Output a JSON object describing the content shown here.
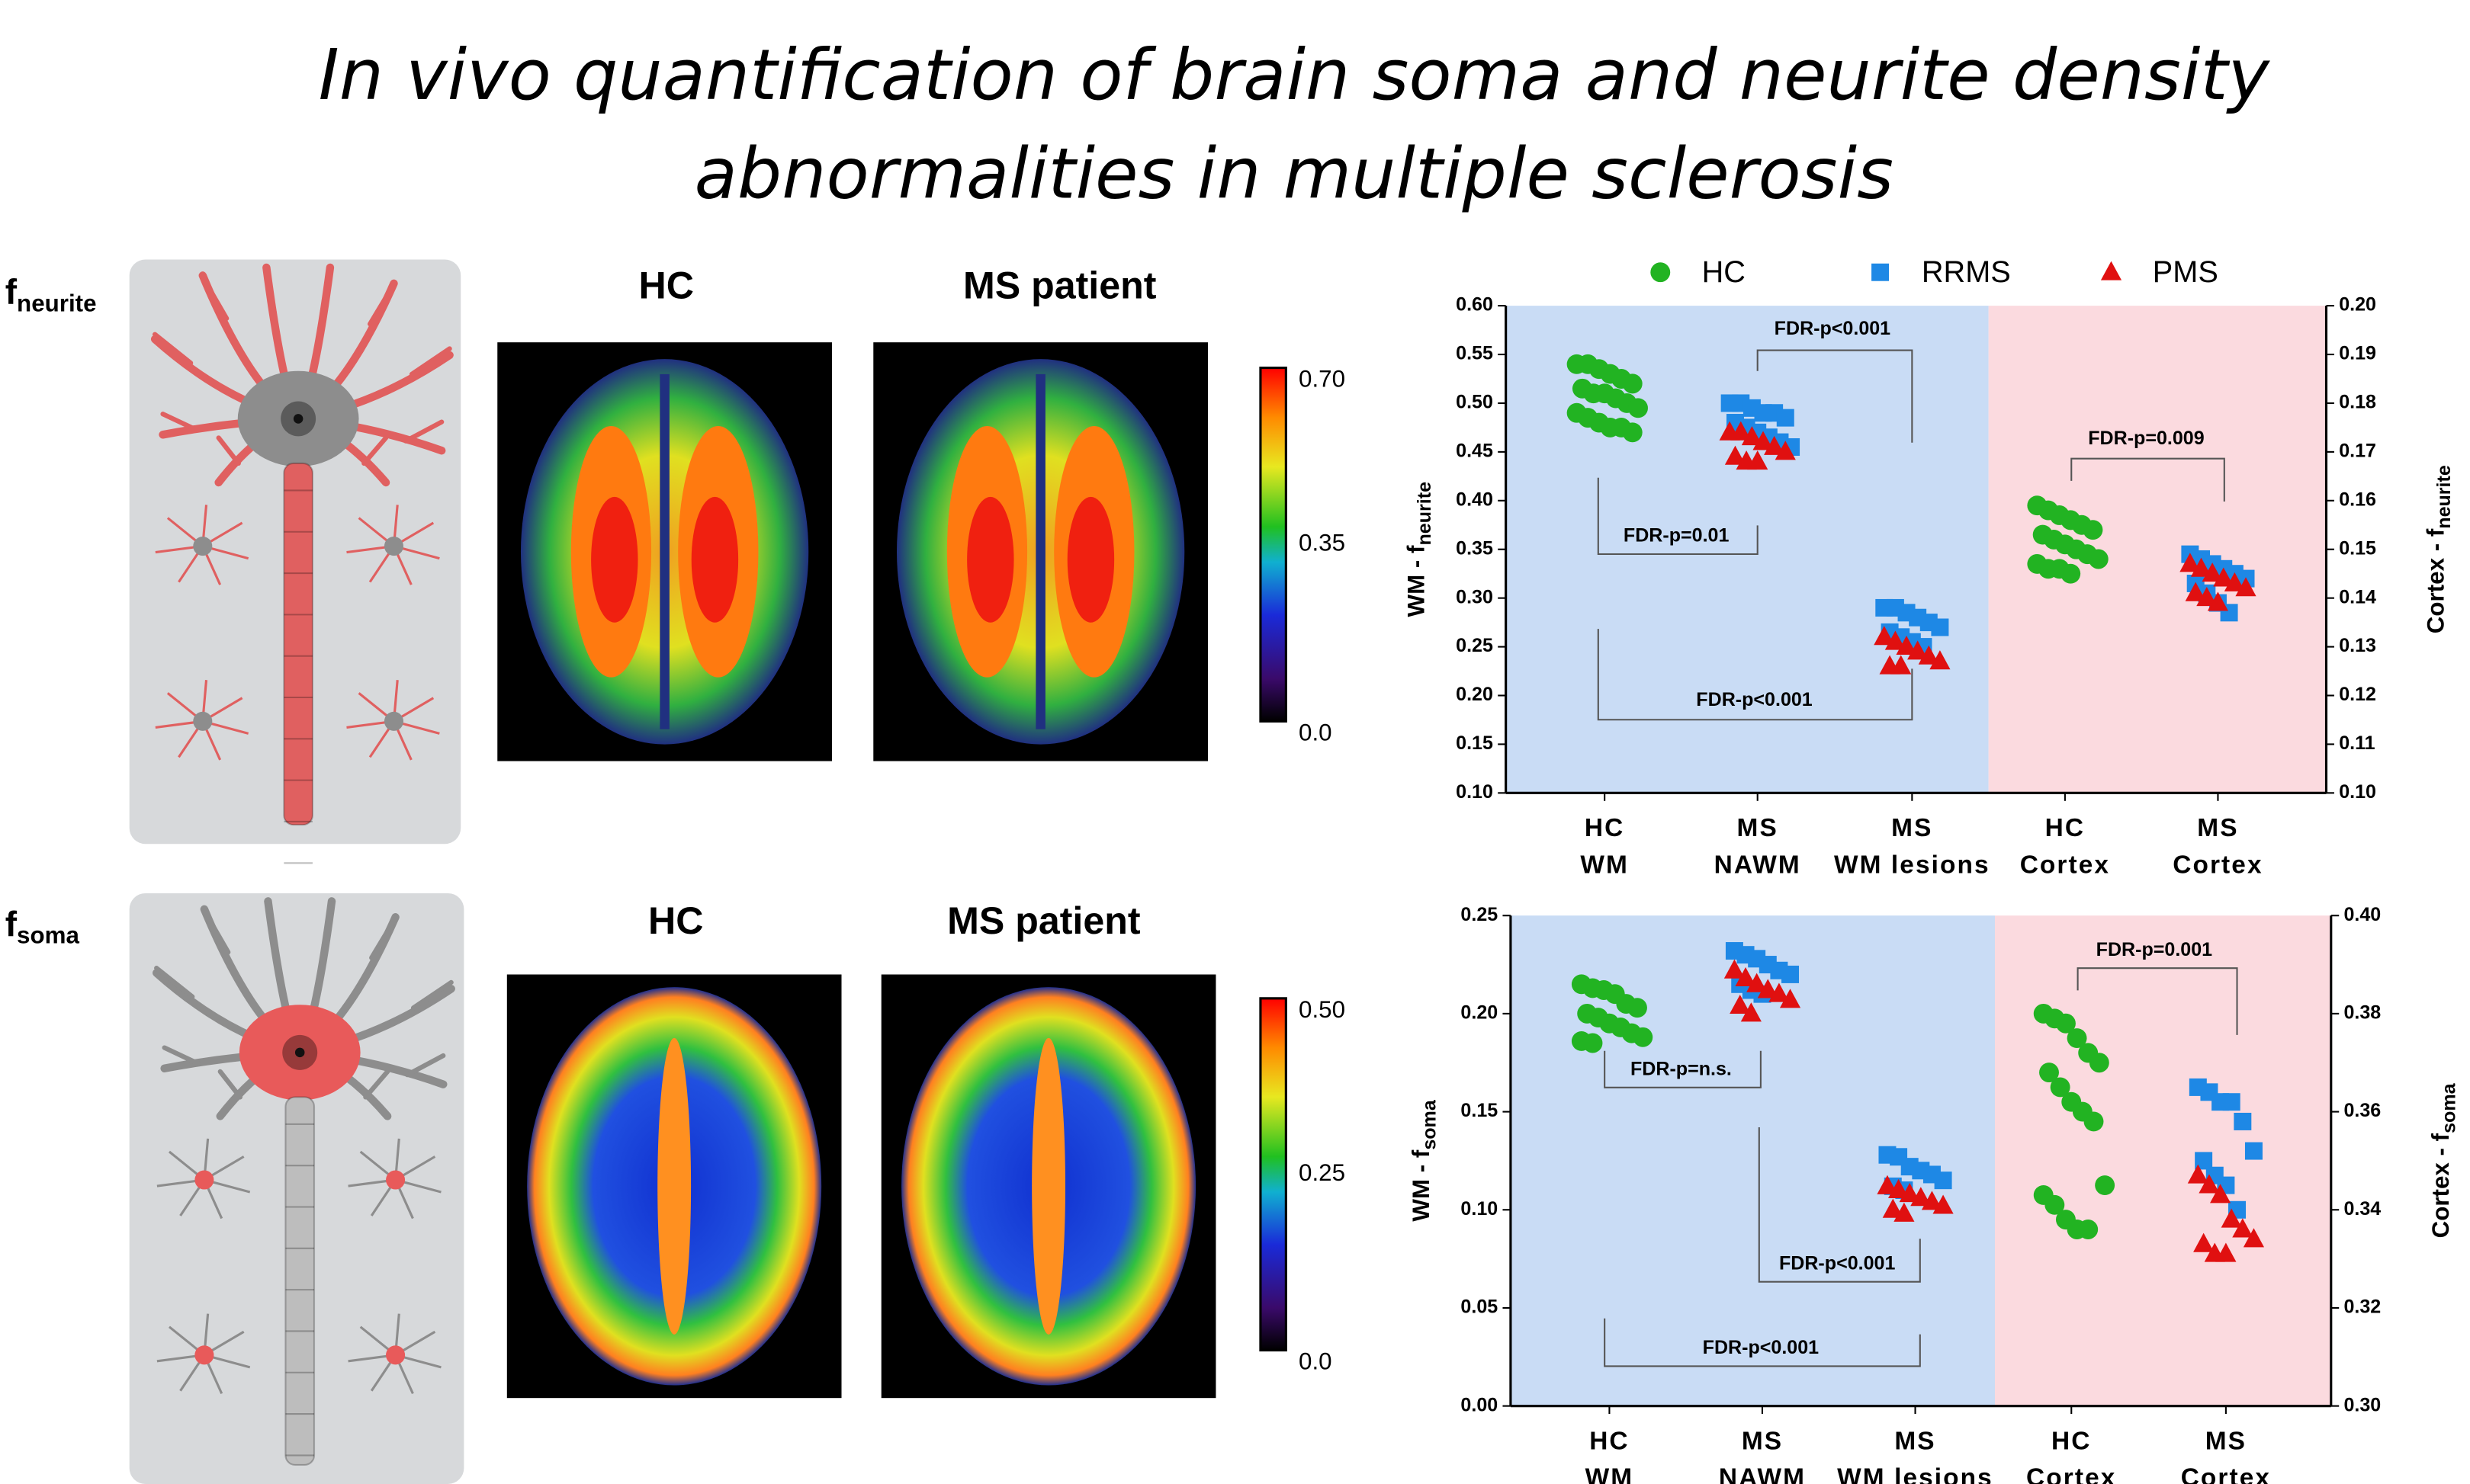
{
  "title": [
    "In vivo quantification of brain soma and neurite density",
    "abnormalities in multiple sclerosis"
  ],
  "panels": [
    {
      "label": "f",
      "label_sub": "neurite",
      "map_titles": [
        "HC",
        "MS patient"
      ],
      "colorbar_ticks": [
        {
          "value": 0,
          "label": "0.0"
        },
        0.35,
        {
          "value": 0.7,
          "label": "0.70"
        }
      ]
    },
    {
      "label": "f",
      "label_sub": "soma",
      "map_titles": [
        "HC",
        "MS patient"
      ],
      "colorbar_ticks": [
        {
          "value": 0,
          "label": "0.0"
        },
        0.25,
        {
          "value": 0.5,
          "label": "0.50"
        }
      ]
    }
  ],
  "chart_data": [
    {
      "type": "scatter",
      "legend": "top",
      "ylabel": "WM - f",
      "ylabel_sub": "neurite",
      "y2label": "Cortex - f",
      "y2label_sub": "neurite",
      "categories": [
        [
          "HC",
          "WM"
        ],
        [
          "MS",
          "NAWM"
        ],
        [
          "MS",
          "WM lesions"
        ],
        [
          "HC",
          "Cortex"
        ],
        [
          "MS",
          "Cortex"
        ]
      ],
      "category_axis": [
        "y",
        "y",
        "y",
        "y2",
        "y2"
      ],
      "ylim": [
        0.1,
        0.6
      ],
      "yticks": [
        {
          "value": 0.1,
          "label": "0.10"
        },
        0.15,
        {
          "value": 0.2,
          "label": "0.20"
        },
        0.25,
        {
          "value": 0.3,
          "label": "0.30"
        },
        0.35,
        {
          "value": 0.4,
          "label": "0.40"
        },
        0.45,
        {
          "value": 0.5,
          "label": "0.50"
        },
        0.55,
        {
          "value": 0.6,
          "label": "0.60"
        }
      ],
      "y2lim": [
        0.1,
        0.2
      ],
      "y2ticks": [
        {
          "value": 0.1,
          "label": "0.10"
        },
        0.11,
        0.12,
        0.13,
        0.14,
        0.15,
        0.16,
        0.17,
        0.18,
        0.19,
        {
          "value": 0.2,
          "label": "0.20"
        }
      ],
      "series": [
        {
          "name": "HC",
          "color": "#22b322",
          "marker": "circle",
          "values": [
            [
              0.54,
              0.54,
              0.535,
              0.53,
              0.525,
              0.52,
              0.515,
              0.51,
              0.51,
              0.505,
              0.5,
              0.495,
              0.49,
              0.485,
              0.48,
              0.475,
              0.475,
              0.47
            ],
            null,
            null,
            [
              0.159,
              0.158,
              0.157,
              0.156,
              0.155,
              0.154,
              0.153,
              0.152,
              0.151,
              0.15,
              0.149,
              0.148,
              0.147,
              0.146,
              0.146,
              0.145
            ],
            null
          ]
        },
        {
          "name": "RRMS",
          "color": "#1e88e5",
          "marker": "square",
          "values": [
            null,
            [
              0.5,
              0.5,
              0.495,
              0.49,
              0.49,
              0.485,
              0.48,
              0.475,
              0.47,
              0.465,
              0.46,
              0.455
            ],
            [
              0.29,
              0.29,
              0.285,
              0.28,
              0.275,
              0.27,
              0.265,
              0.26,
              0.255,
              0.25
            ],
            null,
            [
              0.149,
              0.148,
              0.147,
              0.146,
              0.145,
              0.144,
              0.143,
              0.141,
              0.139,
              0.137
            ]
          ]
        },
        {
          "name": "PMS",
          "color": "#e01010",
          "marker": "triangle",
          "values": [
            null,
            [
              0.47,
              0.47,
              0.465,
              0.46,
              0.455,
              0.45,
              0.445,
              0.44,
              0.44
            ],
            [
              0.26,
              0.255,
              0.25,
              0.245,
              0.24,
              0.235,
              0.23,
              0.23
            ],
            null,
            [
              0.147,
              0.146,
              0.145,
              0.144,
              0.143,
              0.142,
              0.141,
              0.14,
              0.139
            ]
          ]
        }
      ],
      "annotations": [
        "FDR-p<0.001",
        "FDR-p=0.01",
        "FDR-p<0.001",
        "FDR-p=0.009"
      ]
    },
    {
      "type": "scatter",
      "ylabel": "WM - f",
      "ylabel_sub": "soma",
      "y2label": "Cortex - f",
      "y2label_sub": "soma",
      "categories": [
        [
          "HC",
          "WM"
        ],
        [
          "MS",
          "NAWM"
        ],
        [
          "MS",
          "WM lesions"
        ],
        [
          "HC",
          "Cortex"
        ],
        [
          "MS",
          "Cortex"
        ]
      ],
      "category_axis": [
        "y",
        "y",
        "y",
        "y2",
        "y2"
      ],
      "ylim": [
        0,
        0.25
      ],
      "yticks": [
        {
          "value": 0,
          "label": "0.00"
        },
        0.05,
        {
          "value": 0.1,
          "label": "0.10"
        },
        0.15,
        {
          "value": 0.2,
          "label": "0.20"
        },
        0.25
      ],
      "y2lim": [
        0.3,
        0.4
      ],
      "y2ticks": [
        {
          "value": 0.3,
          "label": "0.30"
        },
        0.32,
        0.34,
        0.36,
        0.38,
        {
          "value": 0.4,
          "label": "0.40"
        }
      ],
      "series": [
        {
          "name": "HC",
          "color": "#22b322",
          "marker": "circle",
          "values": [
            [
              0.215,
              0.213,
              0.212,
              0.21,
              0.205,
              0.203,
              0.2,
              0.198,
              0.195,
              0.193,
              0.19,
              0.188,
              0.186,
              0.185
            ],
            null,
            null,
            [
              0.38,
              0.379,
              0.378,
              0.375,
              0.372,
              0.37,
              0.368,
              0.365,
              0.362,
              0.36,
              0.358,
              0.345,
              0.343,
              0.341,
              0.338,
              0.336,
              0.336
            ],
            null
          ]
        },
        {
          "name": "RRMS",
          "color": "#1e88e5",
          "marker": "square",
          "values": [
            null,
            [
              0.232,
              0.23,
              0.228,
              0.225,
              0.222,
              0.22,
              0.215,
              0.212,
              0.21
            ],
            [
              0.128,
              0.127,
              0.122,
              0.12,
              0.118,
              0.115,
              0.112,
              0.11
            ],
            null,
            [
              0.365,
              0.364,
              0.362,
              0.362,
              0.358,
              0.352,
              0.35,
              0.347,
              0.345,
              0.34
            ]
          ]
        },
        {
          "name": "PMS",
          "color": "#e01010",
          "marker": "triangle",
          "values": [
            null,
            [
              0.222,
              0.218,
              0.215,
              0.212,
              0.21,
              0.207,
              0.204,
              0.2
            ],
            [
              0.112,
              0.11,
              0.108,
              0.106,
              0.104,
              0.102,
              0.1,
              0.098
            ],
            null,
            [
              0.347,
              0.345,
              0.343,
              0.338,
              0.336,
              0.334,
              0.333,
              0.331,
              0.331
            ]
          ]
        }
      ],
      "annotations": [
        "FDR-p=n.s.",
        "FDR-p<0.001",
        "FDR-p<0.001",
        "FDR-p=0.001"
      ]
    }
  ]
}
